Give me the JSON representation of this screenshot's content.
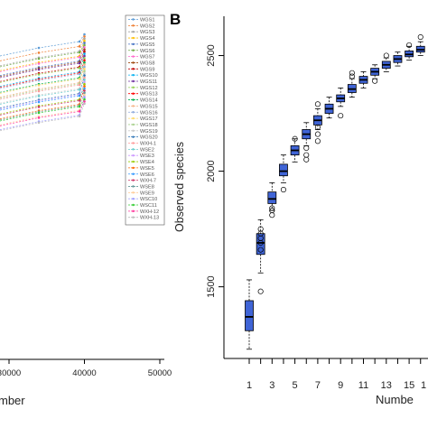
{
  "chart_data": [
    {
      "type": "line",
      "panel": "A",
      "x_tick_labels": [
        "30000",
        "40000",
        "50000"
      ],
      "x_ticks": [
        30000,
        40000,
        50000
      ],
      "xlabel": "mber",
      "legend_entries": [
        "WGS1",
        "WGS2",
        "WGS3",
        "WGS4",
        "WGS5",
        "WGS6",
        "WGS7",
        "WGS8",
        "WGS9",
        "WGS10",
        "WGS11",
        "WGS12",
        "WGS13",
        "WGS14",
        "WGS15",
        "WGS16",
        "WGS17",
        "WGS18",
        "WGS19",
        "WGS20",
        "WXH-1",
        "WSE2",
        "WSE3",
        "WSE4",
        "WSE5",
        "WSE6",
        "WXH-7",
        "WSE8",
        "WSE9",
        "WSC10",
        "WSC11",
        "WXH-12",
        "WXH-13"
      ],
      "legend_placement": "right",
      "series_colors": [
        "#5b9bd5",
        "#ed7d31",
        "#a5a5a5",
        "#ffc000",
        "#4472c4",
        "#70ad47",
        "#ff66cc",
        "#9e480e",
        "#c00000",
        "#00b0f0",
        "#7030a0",
        "#92d050",
        "#ff0000",
        "#00b050",
        "#f4b183",
        "#8faadc",
        "#ffd966",
        "#a9d18e",
        "#c9c9c9",
        "#2e75b6",
        "#ff9999",
        "#66cccc",
        "#cc99ff",
        "#99cc00",
        "#ff6600",
        "#3399ff",
        "#cc3366",
        "#669999",
        "#ffcc99",
        "#9999ff",
        "#33cc33",
        "#ff3399",
        "#bbbbbb"
      ],
      "x_at_right_end": 40000
    },
    {
      "type": "box",
      "panel": "B",
      "ylabel": "Observed species",
      "xlabel": "Numbe",
      "y_ticks": [
        1500,
        2000,
        2500
      ],
      "ylim": [
        1190,
        2670
      ],
      "x_tick_labels": [
        "1",
        "3",
        "5",
        "7",
        "9",
        "11",
        "13",
        "15"
      ],
      "box_color": "#3f64d6",
      "boxes": [
        {
          "x": 1,
          "q1": 1310,
          "median": 1370,
          "q3": 1440,
          "min": 1230,
          "max": 1530,
          "outliers": []
        },
        {
          "x": 2,
          "q1": 1640,
          "median": 1690,
          "q3": 1730,
          "min": 1560,
          "max": 1790,
          "outliers": [
            1480,
            1660,
            1690,
            1710,
            1730,
            1750
          ]
        },
        {
          "x": 3,
          "q1": 1860,
          "median": 1880,
          "q3": 1910,
          "min": 1830,
          "max": 1950,
          "outliers": [
            1830,
            1810,
            1840
          ]
        },
        {
          "x": 4,
          "q1": 1980,
          "median": 2000,
          "q3": 2030,
          "min": 1950,
          "max": 2070,
          "outliers": [
            1920
          ]
        },
        {
          "x": 5,
          "q1": 2070,
          "median": 2090,
          "q3": 2110,
          "min": 2040,
          "max": 2140,
          "outliers": [
            2140
          ]
        },
        {
          "x": 6,
          "q1": 2140,
          "median": 2160,
          "q3": 2180,
          "min": 2110,
          "max": 2210,
          "outliers": [
            2050,
            2070,
            2100
          ]
        },
        {
          "x": 7,
          "q1": 2200,
          "median": 2220,
          "q3": 2240,
          "min": 2180,
          "max": 2270,
          "outliers": [
            2130,
            2160,
            2190,
            2290
          ]
        },
        {
          "x": 8,
          "q1": 2250,
          "median": 2270,
          "q3": 2290,
          "min": 2230,
          "max": 2320,
          "outliers": []
        },
        {
          "x": 9,
          "q1": 2300,
          "median": 2315,
          "q3": 2330,
          "min": 2280,
          "max": 2360,
          "outliers": [
            2240
          ]
        },
        {
          "x": 10,
          "q1": 2340,
          "median": 2355,
          "q3": 2375,
          "min": 2320,
          "max": 2400,
          "outliers": [
            2410,
            2425
          ]
        },
        {
          "x": 11,
          "q1": 2380,
          "median": 2395,
          "q3": 2410,
          "min": 2360,
          "max": 2430,
          "outliers": []
        },
        {
          "x": 12,
          "q1": 2415,
          "median": 2430,
          "q3": 2445,
          "min": 2400,
          "max": 2460,
          "outliers": [
            2390
          ]
        },
        {
          "x": 13,
          "q1": 2445,
          "median": 2460,
          "q3": 2475,
          "min": 2430,
          "max": 2490,
          "outliers": [
            2500
          ]
        },
        {
          "x": 14,
          "q1": 2470,
          "median": 2485,
          "q3": 2500,
          "min": 2455,
          "max": 2515,
          "outliers": []
        },
        {
          "x": 15,
          "q1": 2495,
          "median": 2505,
          "q3": 2520,
          "min": 2480,
          "max": 2540,
          "outliers": [
            2545
          ]
        },
        {
          "x": 16,
          "q1": 2515,
          "median": 2525,
          "q3": 2540,
          "min": 2500,
          "max": 2560,
          "outliers": [
            2580
          ]
        }
      ]
    }
  ],
  "panel_b_letter": "B",
  "panel_b_last_visible_tick": "1"
}
